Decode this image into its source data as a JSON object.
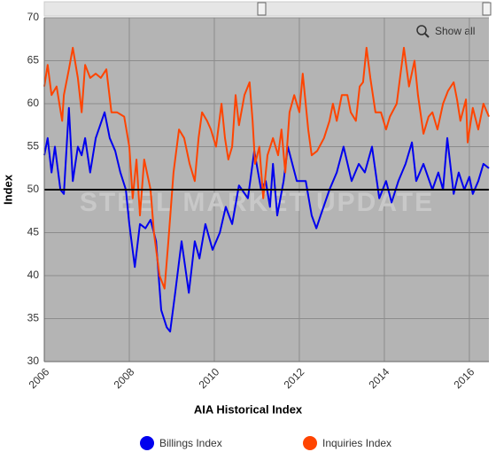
{
  "chart_data": {
    "type": "line",
    "title": "AIA Historical Index",
    "ylabel": "Index",
    "watermark": "STEEL MARKET UPDATE",
    "button": "Show all",
    "xlim": [
      2006,
      2016.46
    ],
    "ylim": [
      30,
      70
    ],
    "xticks": [
      2006,
      2008,
      2010,
      2012,
      2014,
      2016
    ],
    "yticks": [
      30,
      35,
      40,
      45,
      50,
      55,
      60,
      65,
      70
    ],
    "reference_line": 50,
    "grid": true,
    "legend": "bottom",
    "series": [
      {
        "name": "Billings Index",
        "color": "#0000ee",
        "x": [
          2006.0,
          2006.08,
          2006.17,
          2006.25,
          2006.38,
          2006.46,
          2006.58,
          2006.67,
          2006.79,
          2006.88,
          2006.96,
          2007.08,
          2007.21,
          2007.42,
          2007.54,
          2007.67,
          2007.79,
          2007.92,
          2008.0,
          2008.13,
          2008.25,
          2008.38,
          2008.5,
          2008.63,
          2008.75,
          2008.88,
          2008.96,
          2009.08,
          2009.23,
          2009.4,
          2009.54,
          2009.65,
          2009.79,
          2009.96,
          2010.13,
          2010.27,
          2010.42,
          2010.58,
          2010.79,
          2010.94,
          2011.1,
          2011.21,
          2011.31,
          2011.38,
          2011.48,
          2011.63,
          2011.73,
          2011.94,
          2012.15,
          2012.29,
          2012.4,
          2012.5,
          2012.71,
          2012.88,
          2013.04,
          2013.23,
          2013.4,
          2013.54,
          2013.71,
          2013.88,
          2014.04,
          2014.17,
          2014.33,
          2014.5,
          2014.65,
          2014.75,
          2014.92,
          2015.13,
          2015.27,
          2015.38,
          2015.48,
          2015.63,
          2015.75,
          2015.88,
          2016.0,
          2016.08,
          2016.21,
          2016.33,
          2016.46
        ],
        "values": [
          54,
          56,
          52,
          55,
          50,
          49.5,
          59.5,
          51,
          55,
          54,
          56,
          52,
          56,
          59,
          56,
          54.5,
          52,
          50,
          46,
          41,
          46,
          45.5,
          46.5,
          44,
          36,
          34,
          33.5,
          38,
          44,
          38,
          44,
          42,
          46,
          43,
          45,
          48,
          46,
          50.5,
          49,
          54.5,
          50,
          51,
          48,
          53,
          47,
          51,
          55,
          51,
          51,
          47,
          45.5,
          47,
          50,
          52,
          55,
          51,
          53,
          52,
          55,
          49,
          51,
          48.5,
          51,
          53,
          55.5,
          51,
          53,
          50,
          52,
          50,
          56,
          49.5,
          52,
          50,
          51.5,
          49.5,
          51,
          53,
          52.5
        ]
      },
      {
        "name": "Inquiries Index",
        "color": "#ff4400",
        "x": [
          2006.0,
          2006.08,
          2006.17,
          2006.29,
          2006.42,
          2006.46,
          2006.58,
          2006.67,
          2006.79,
          2006.88,
          2006.96,
          2007.08,
          2007.21,
          2007.33,
          2007.46,
          2007.58,
          2007.71,
          2007.88,
          2008.0,
          2008.08,
          2008.17,
          2008.25,
          2008.35,
          2008.5,
          2008.58,
          2008.71,
          2008.83,
          2008.92,
          2009.04,
          2009.17,
          2009.29,
          2009.42,
          2009.54,
          2009.63,
          2009.71,
          2009.83,
          2009.92,
          2010.04,
          2010.17,
          2010.25,
          2010.33,
          2010.42,
          2010.5,
          2010.58,
          2010.71,
          2010.83,
          2010.9,
          2010.96,
          2011.06,
          2011.15,
          2011.25,
          2011.38,
          2011.5,
          2011.58,
          2011.67,
          2011.77,
          2011.88,
          2012.0,
          2012.08,
          2012.21,
          2012.29,
          2012.42,
          2012.58,
          2012.71,
          2012.79,
          2012.88,
          2013.0,
          2013.13,
          2013.21,
          2013.33,
          2013.42,
          2013.5,
          2013.58,
          2013.67,
          2013.79,
          2013.92,
          2014.04,
          2014.13,
          2014.29,
          2014.46,
          2014.58,
          2014.71,
          2014.79,
          2014.92,
          2015.04,
          2015.13,
          2015.25,
          2015.38,
          2015.5,
          2015.63,
          2015.71,
          2015.79,
          2015.92,
          2015.96,
          2016.08,
          2016.21,
          2016.33,
          2016.46
        ],
        "values": [
          62,
          64.5,
          61,
          62,
          58,
          61,
          64,
          66.5,
          63,
          59,
          64.5,
          63,
          63.5,
          63,
          64,
          59,
          59,
          58.5,
          55,
          49,
          53.5,
          47,
          53.5,
          50,
          45,
          40,
          38.5,
          44,
          52,
          57,
          56,
          53,
          51,
          56,
          59,
          58,
          57,
          55,
          60,
          56,
          53.5,
          55,
          61,
          57.5,
          61,
          62.5,
          58,
          53,
          55,
          49,
          54,
          56,
          54,
          57,
          52,
          59,
          61,
          59,
          63.5,
          57,
          54,
          54.5,
          56,
          58,
          60,
          58,
          61,
          61,
          59,
          58,
          62,
          62.5,
          66.5,
          63,
          59,
          59,
          57,
          58.5,
          60,
          66.5,
          62,
          65,
          61,
          56.5,
          58.5,
          59,
          57,
          60,
          61.5,
          62.5,
          60.5,
          58,
          60.5,
          55.5,
          59.5,
          57,
          60,
          58.5
        ]
      }
    ]
  }
}
